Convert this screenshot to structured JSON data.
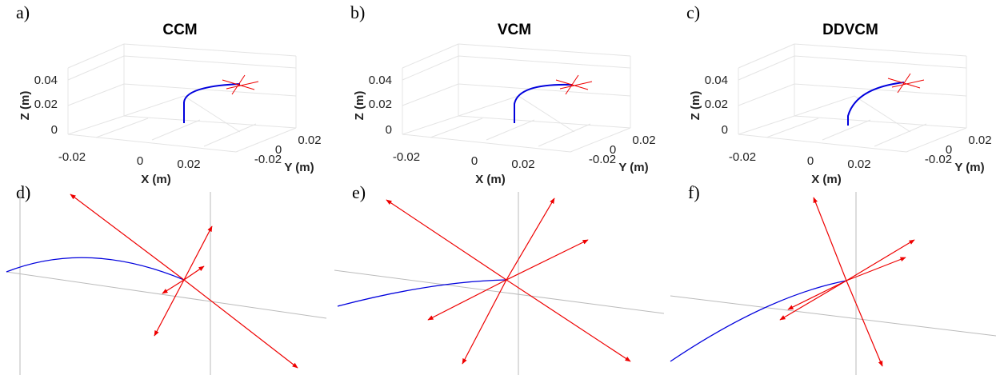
{
  "panels": [
    {
      "letter": "a)",
      "title": "CCM",
      "xlabel": "X (m)",
      "ylabel": "Y (m)",
      "zlabel": "Z (m)",
      "xticks": [
        -0.02,
        0,
        0.02
      ],
      "yticks": [
        -0.02,
        0,
        0.02
      ],
      "zticks": [
        0,
        0.02,
        0.04
      ]
    },
    {
      "letter": "b)",
      "title": "VCM",
      "xlabel": "X (m)",
      "ylabel": "Y (m)",
      "zlabel": "Z (m)",
      "xticks": [
        -0.02,
        0,
        0.02
      ],
      "yticks": [
        -0.02,
        0,
        0.02
      ],
      "zticks": [
        0,
        0.02,
        0.04
      ]
    },
    {
      "letter": "c)",
      "title": "DDVCM",
      "xlabel": "X (m)",
      "ylabel": "Y (m)",
      "zlabel": "Z (m)",
      "xticks": [
        -0.02,
        0,
        0.02
      ],
      "yticks": [
        -0.02,
        0,
        0.02
      ],
      "zticks": [
        0,
        0.02,
        0.04
      ]
    }
  ],
  "zooms": [
    {
      "letter": "d)"
    },
    {
      "letter": "e)"
    },
    {
      "letter": "f)"
    }
  ]
}
